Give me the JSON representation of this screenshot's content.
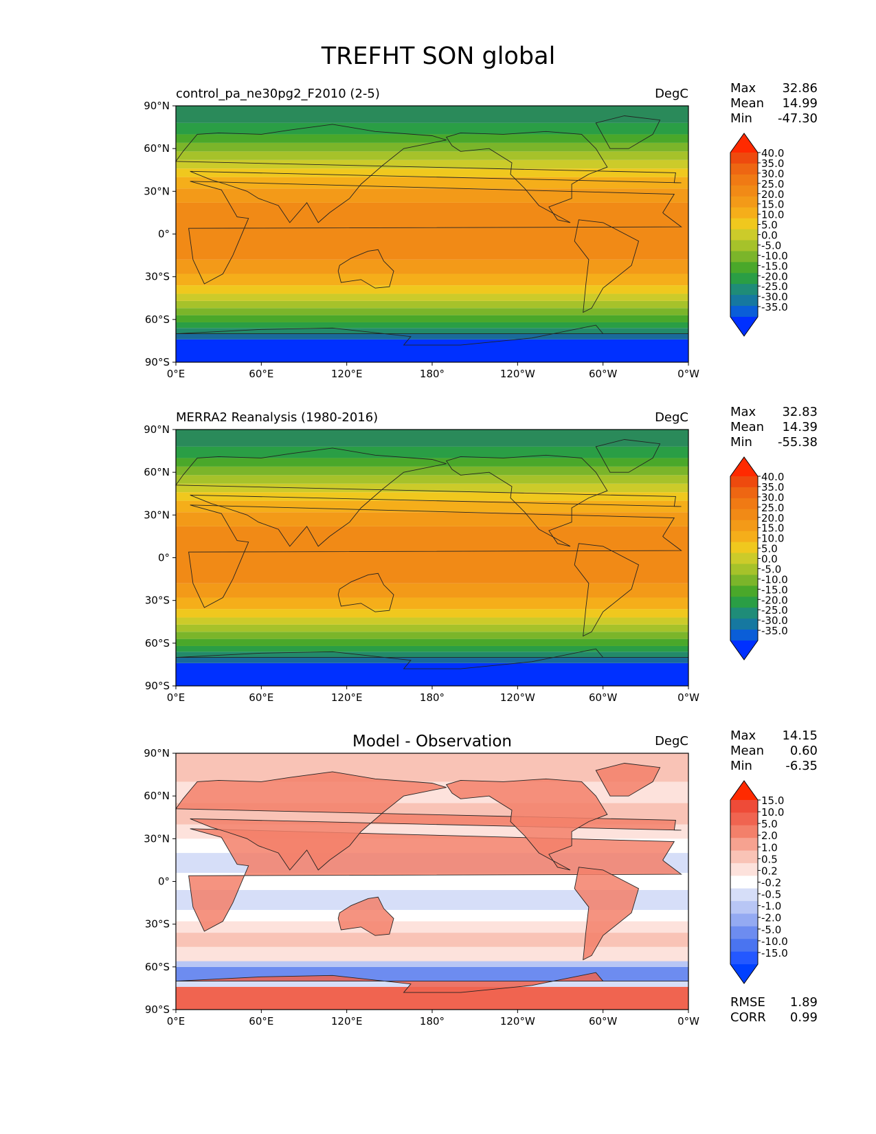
{
  "figure": {
    "title": "TREFHT SON global"
  },
  "axes": {
    "xticks": [
      "0°E",
      "60°E",
      "120°E",
      "180°",
      "120°W",
      "60°W",
      "0°W"
    ],
    "yticks": [
      "90°N",
      "60°N",
      "30°N",
      "0°",
      "30°S",
      "60°S",
      "90°S"
    ]
  },
  "chart_data": [
    {
      "type": "heatmap",
      "panel": "model",
      "title": "control_pa_ne30pg2_F2010 (2-5)",
      "units": "DegC",
      "stats": [
        {
          "label": "Max",
          "value": "32.86"
        },
        {
          "label": "Mean",
          "value": "14.99"
        },
        {
          "label": "Min",
          "value": "-47.30"
        }
      ],
      "colorbar": {
        "colors": [
          "#0030ff",
          "#0a5ed8",
          "#1678a0",
          "#1f8c78",
          "#2a9e45",
          "#4aa82a",
          "#7bb52a",
          "#a6c22a",
          "#cccb2a",
          "#f0c81e",
          "#f5ae1a",
          "#f39a18",
          "#f18a16",
          "#f07a14",
          "#ee6612",
          "#ee4a0e",
          "#ff2a00"
        ],
        "labels": [
          "40.0",
          "35.0",
          "30.0",
          "25.0",
          "20.0",
          "15.0",
          "10.0",
          "5.0",
          "0.0",
          "-5.0",
          "-10.0",
          "-15.0",
          "-20.0",
          "-25.0",
          "-30.0",
          "-35.0"
        ]
      }
    },
    {
      "type": "heatmap",
      "panel": "observation",
      "title": "MERRA2 Reanalysis (1980-2016)",
      "units": "DegC",
      "stats": [
        {
          "label": "Max",
          "value": "32.83"
        },
        {
          "label": "Mean",
          "value": "14.39"
        },
        {
          "label": "Min",
          "value": "-55.38"
        }
      ],
      "colorbar": {
        "colors": [
          "#0030ff",
          "#0a5ed8",
          "#1678a0",
          "#1f8c78",
          "#2a9e45",
          "#4aa82a",
          "#7bb52a",
          "#a6c22a",
          "#cccb2a",
          "#f0c81e",
          "#f5ae1a",
          "#f39a18",
          "#f18a16",
          "#f07a14",
          "#ee6612",
          "#ee4a0e",
          "#ff2a00"
        ],
        "labels": [
          "40.0",
          "35.0",
          "30.0",
          "25.0",
          "20.0",
          "15.0",
          "10.0",
          "5.0",
          "0.0",
          "-5.0",
          "-10.0",
          "-15.0",
          "-20.0",
          "-25.0",
          "-30.0",
          "-35.0"
        ]
      }
    },
    {
      "type": "heatmap",
      "panel": "difference",
      "title": "Model - Observation",
      "units": "DegC",
      "stats": [
        {
          "label": "Max",
          "value": "14.15"
        },
        {
          "label": "Mean",
          "value": "0.60"
        },
        {
          "label": "Min",
          "value": "-6.35"
        }
      ],
      "metrics": [
        {
          "label": "RMSE",
          "value": "1.89"
        },
        {
          "label": "CORR",
          "value": "0.99"
        }
      ],
      "colorbar": {
        "colors": [
          "#0040ff",
          "#2458ff",
          "#4a74f0",
          "#6d8cf0",
          "#94aaf2",
          "#b8c6f5",
          "#d6def8",
          "#ffffff",
          "#fde2dc",
          "#f9c3b6",
          "#f6a290",
          "#f3806a",
          "#f06450",
          "#ee4b38",
          "#ff2a00"
        ],
        "labels": [
          "15.0",
          "10.0",
          "5.0",
          "2.0",
          "1.0",
          "0.5",
          "0.2",
          "-0.2",
          "-0.5",
          "-1.0",
          "-2.0",
          "-5.0",
          "-10.0",
          "-15.0"
        ]
      }
    }
  ]
}
